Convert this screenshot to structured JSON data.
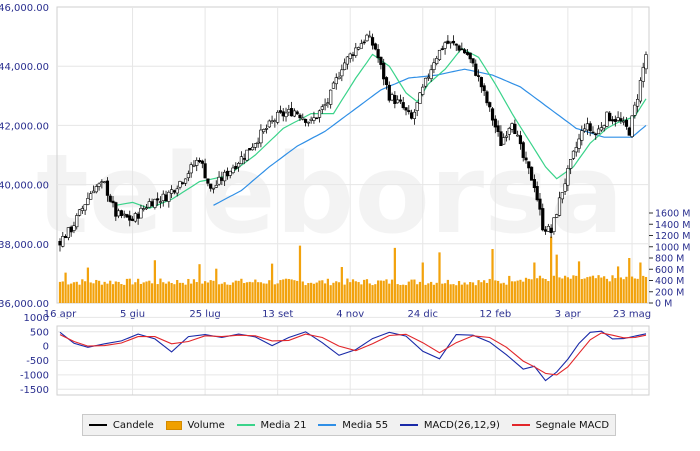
{
  "chart_data": [
    {
      "type": "candlestick+volume",
      "ylim": [
        36000,
        46000
      ],
      "y_ticks": [
        "36,000.00",
        "38,000.00",
        "40,000.00",
        "42,000.00",
        "44,000.00",
        "46,000.00"
      ],
      "x_ticks": [
        "16 apr",
        "5 giu",
        "25 lug",
        "13 set",
        "4 nov",
        "24 dic",
        "12 feb",
        "3 apr",
        "23 mag"
      ],
      "volume_ylim": [
        0,
        1600
      ],
      "volume_ticks": [
        "1600 M",
        "1400 M",
        "1200 M",
        "1000 M",
        "800 M",
        "600 M",
        "400 M",
        "200 M",
        "0 M"
      ],
      "close_anchors": [
        [
          0,
          38100
        ],
        [
          4,
          38500
        ],
        [
          8,
          39200
        ],
        [
          12,
          39900
        ],
        [
          16,
          40000
        ],
        [
          20,
          39000
        ],
        [
          26,
          38800
        ],
        [
          32,
          39400
        ],
        [
          38,
          39600
        ],
        [
          44,
          40200
        ],
        [
          50,
          40900
        ],
        [
          54,
          39800
        ],
        [
          60,
          40400
        ],
        [
          66,
          41000
        ],
        [
          72,
          41700
        ],
        [
          78,
          42300
        ],
        [
          84,
          42500
        ],
        [
          90,
          42100
        ],
        [
          96,
          42800
        ],
        [
          101,
          44000
        ],
        [
          106,
          44600
        ],
        [
          110,
          45000
        ],
        [
          113,
          44600
        ],
        [
          118,
          43000
        ],
        [
          122,
          42700
        ],
        [
          126,
          42200
        ],
        [
          130,
          43200
        ],
        [
          134,
          44200
        ],
        [
          138,
          44800
        ],
        [
          142,
          44700
        ],
        [
          146,
          44400
        ],
        [
          150,
          43600
        ],
        [
          154,
          42500
        ],
        [
          158,
          41400
        ],
        [
          162,
          42200
        ],
        [
          166,
          40900
        ],
        [
          170,
          40000
        ],
        [
          173,
          38600
        ],
        [
          176,
          38400
        ],
        [
          180,
          39800
        ],
        [
          184,
          41000
        ],
        [
          188,
          42000
        ],
        [
          192,
          41700
        ],
        [
          196,
          42300
        ],
        [
          200,
          42200
        ],
        [
          204,
          41800
        ],
        [
          207,
          43000
        ],
        [
          210,
          44400
        ]
      ],
      "ma21_anchors": [
        [
          20,
          39300
        ],
        [
          26,
          39400
        ],
        [
          32,
          39200
        ],
        [
          40,
          39500
        ],
        [
          50,
          40100
        ],
        [
          60,
          40300
        ],
        [
          70,
          41000
        ],
        [
          80,
          41900
        ],
        [
          90,
          42400
        ],
        [
          98,
          42400
        ],
        [
          106,
          43600
        ],
        [
          112,
          44400
        ],
        [
          118,
          44000
        ],
        [
          124,
          43100
        ],
        [
          128,
          42800
        ],
        [
          132,
          43400
        ],
        [
          138,
          43900
        ],
        [
          144,
          44600
        ],
        [
          150,
          44300
        ],
        [
          156,
          43400
        ],
        [
          162,
          42400
        ],
        [
          168,
          41500
        ],
        [
          174,
          40600
        ],
        [
          178,
          40200
        ],
        [
          184,
          40600
        ],
        [
          190,
          41400
        ],
        [
          196,
          41900
        ],
        [
          200,
          42100
        ],
        [
          206,
          42300
        ],
        [
          210,
          42900
        ]
      ],
      "ma55_anchors": [
        [
          55,
          39300
        ],
        [
          65,
          39800
        ],
        [
          75,
          40600
        ],
        [
          85,
          41300
        ],
        [
          95,
          41800
        ],
        [
          105,
          42500
        ],
        [
          115,
          43200
        ],
        [
          125,
          43600
        ],
        [
          135,
          43700
        ],
        [
          145,
          43900
        ],
        [
          155,
          43700
        ],
        [
          165,
          43300
        ],
        [
          175,
          42600
        ],
        [
          185,
          41900
        ],
        [
          195,
          41600
        ],
        [
          205,
          41600
        ],
        [
          210,
          42000
        ]
      ],
      "volume_base": 370,
      "volume_spikes": [
        [
          2,
          540
        ],
        [
          10,
          630
        ],
        [
          34,
          760
        ],
        [
          50,
          690
        ],
        [
          56,
          610
        ],
        [
          76,
          700
        ],
        [
          86,
          1020
        ],
        [
          101,
          640
        ],
        [
          120,
          980
        ],
        [
          130,
          720
        ],
        [
          136,
          900
        ],
        [
          155,
          960
        ],
        [
          170,
          720
        ],
        [
          176,
          1180
        ],
        [
          178,
          860
        ],
        [
          186,
          740
        ],
        [
          200,
          650
        ],
        [
          204,
          800
        ],
        [
          208,
          720
        ]
      ]
    },
    {
      "type": "line",
      "ylim": [
        -1700,
        700
      ],
      "y_ticks": [
        "1000",
        "500",
        "0",
        "-500",
        "-1000",
        "-1500"
      ],
      "series": [
        {
          "name": "MACD(26,12,9)",
          "x": [
            0,
            5,
            10,
            16,
            22,
            28,
            34,
            40,
            46,
            52,
            58,
            64,
            70,
            76,
            82,
            88,
            94,
            100,
            106,
            112,
            118,
            124,
            130,
            136,
            142,
            148,
            154,
            160,
            166,
            170,
            174,
            178,
            182,
            186,
            190,
            194,
            198,
            202,
            206,
            210
          ],
          "values": [
            480,
            100,
            -40,
            80,
            180,
            420,
            250,
            -200,
            330,
            400,
            300,
            420,
            320,
            20,
            300,
            500,
            120,
            -320,
            -120,
            260,
            480,
            350,
            -180,
            -440,
            400,
            380,
            140,
            -300,
            -800,
            -700,
            -1200,
            -900,
            -450,
            100,
            480,
            520,
            250,
            260,
            350,
            430
          ]
        },
        {
          "name": "Segnale MACD",
          "x": [
            0,
            5,
            10,
            16,
            22,
            28,
            34,
            40,
            46,
            52,
            58,
            64,
            70,
            76,
            82,
            88,
            94,
            100,
            106,
            112,
            118,
            124,
            130,
            136,
            142,
            148,
            154,
            160,
            166,
            170,
            174,
            178,
            182,
            186,
            190,
            194,
            198,
            202,
            206,
            210
          ],
          "values": [
            400,
            160,
            0,
            20,
            110,
            330,
            330,
            80,
            160,
            360,
            330,
            380,
            360,
            180,
            200,
            420,
            300,
            0,
            -160,
            80,
            370,
            410,
            120,
            -230,
            120,
            360,
            300,
            -40,
            -520,
            -720,
            -950,
            -1000,
            -720,
            -250,
            220,
            460,
            380,
            290,
            300,
            380
          ]
        }
      ]
    }
  ],
  "legend": [
    {
      "label": "Candele",
      "color": "#000000",
      "kind": "line"
    },
    {
      "label": "Volume",
      "color": "#f0a000",
      "kind": "box"
    },
    {
      "label": "Media 21",
      "color": "#3ad38a",
      "kind": "line"
    },
    {
      "label": "Media 55",
      "color": "#2f8fe6",
      "kind": "line"
    },
    {
      "label": "MACD(26,12,9)",
      "color": "#1a2aa8",
      "kind": "line"
    },
    {
      "label": "Segnale MACD",
      "color": "#e2262a",
      "kind": "line"
    }
  ],
  "colors": {
    "grid": "#e6e6e6",
    "axis_text": "#2a2f8f",
    "candle_up": "#ffffff",
    "candle_down": "#000000",
    "volume": "#f2a20c",
    "ma21": "#3ad38a",
    "ma55": "#2f8fe6",
    "macd": "#1a2aa8",
    "signal": "#e2262a"
  }
}
